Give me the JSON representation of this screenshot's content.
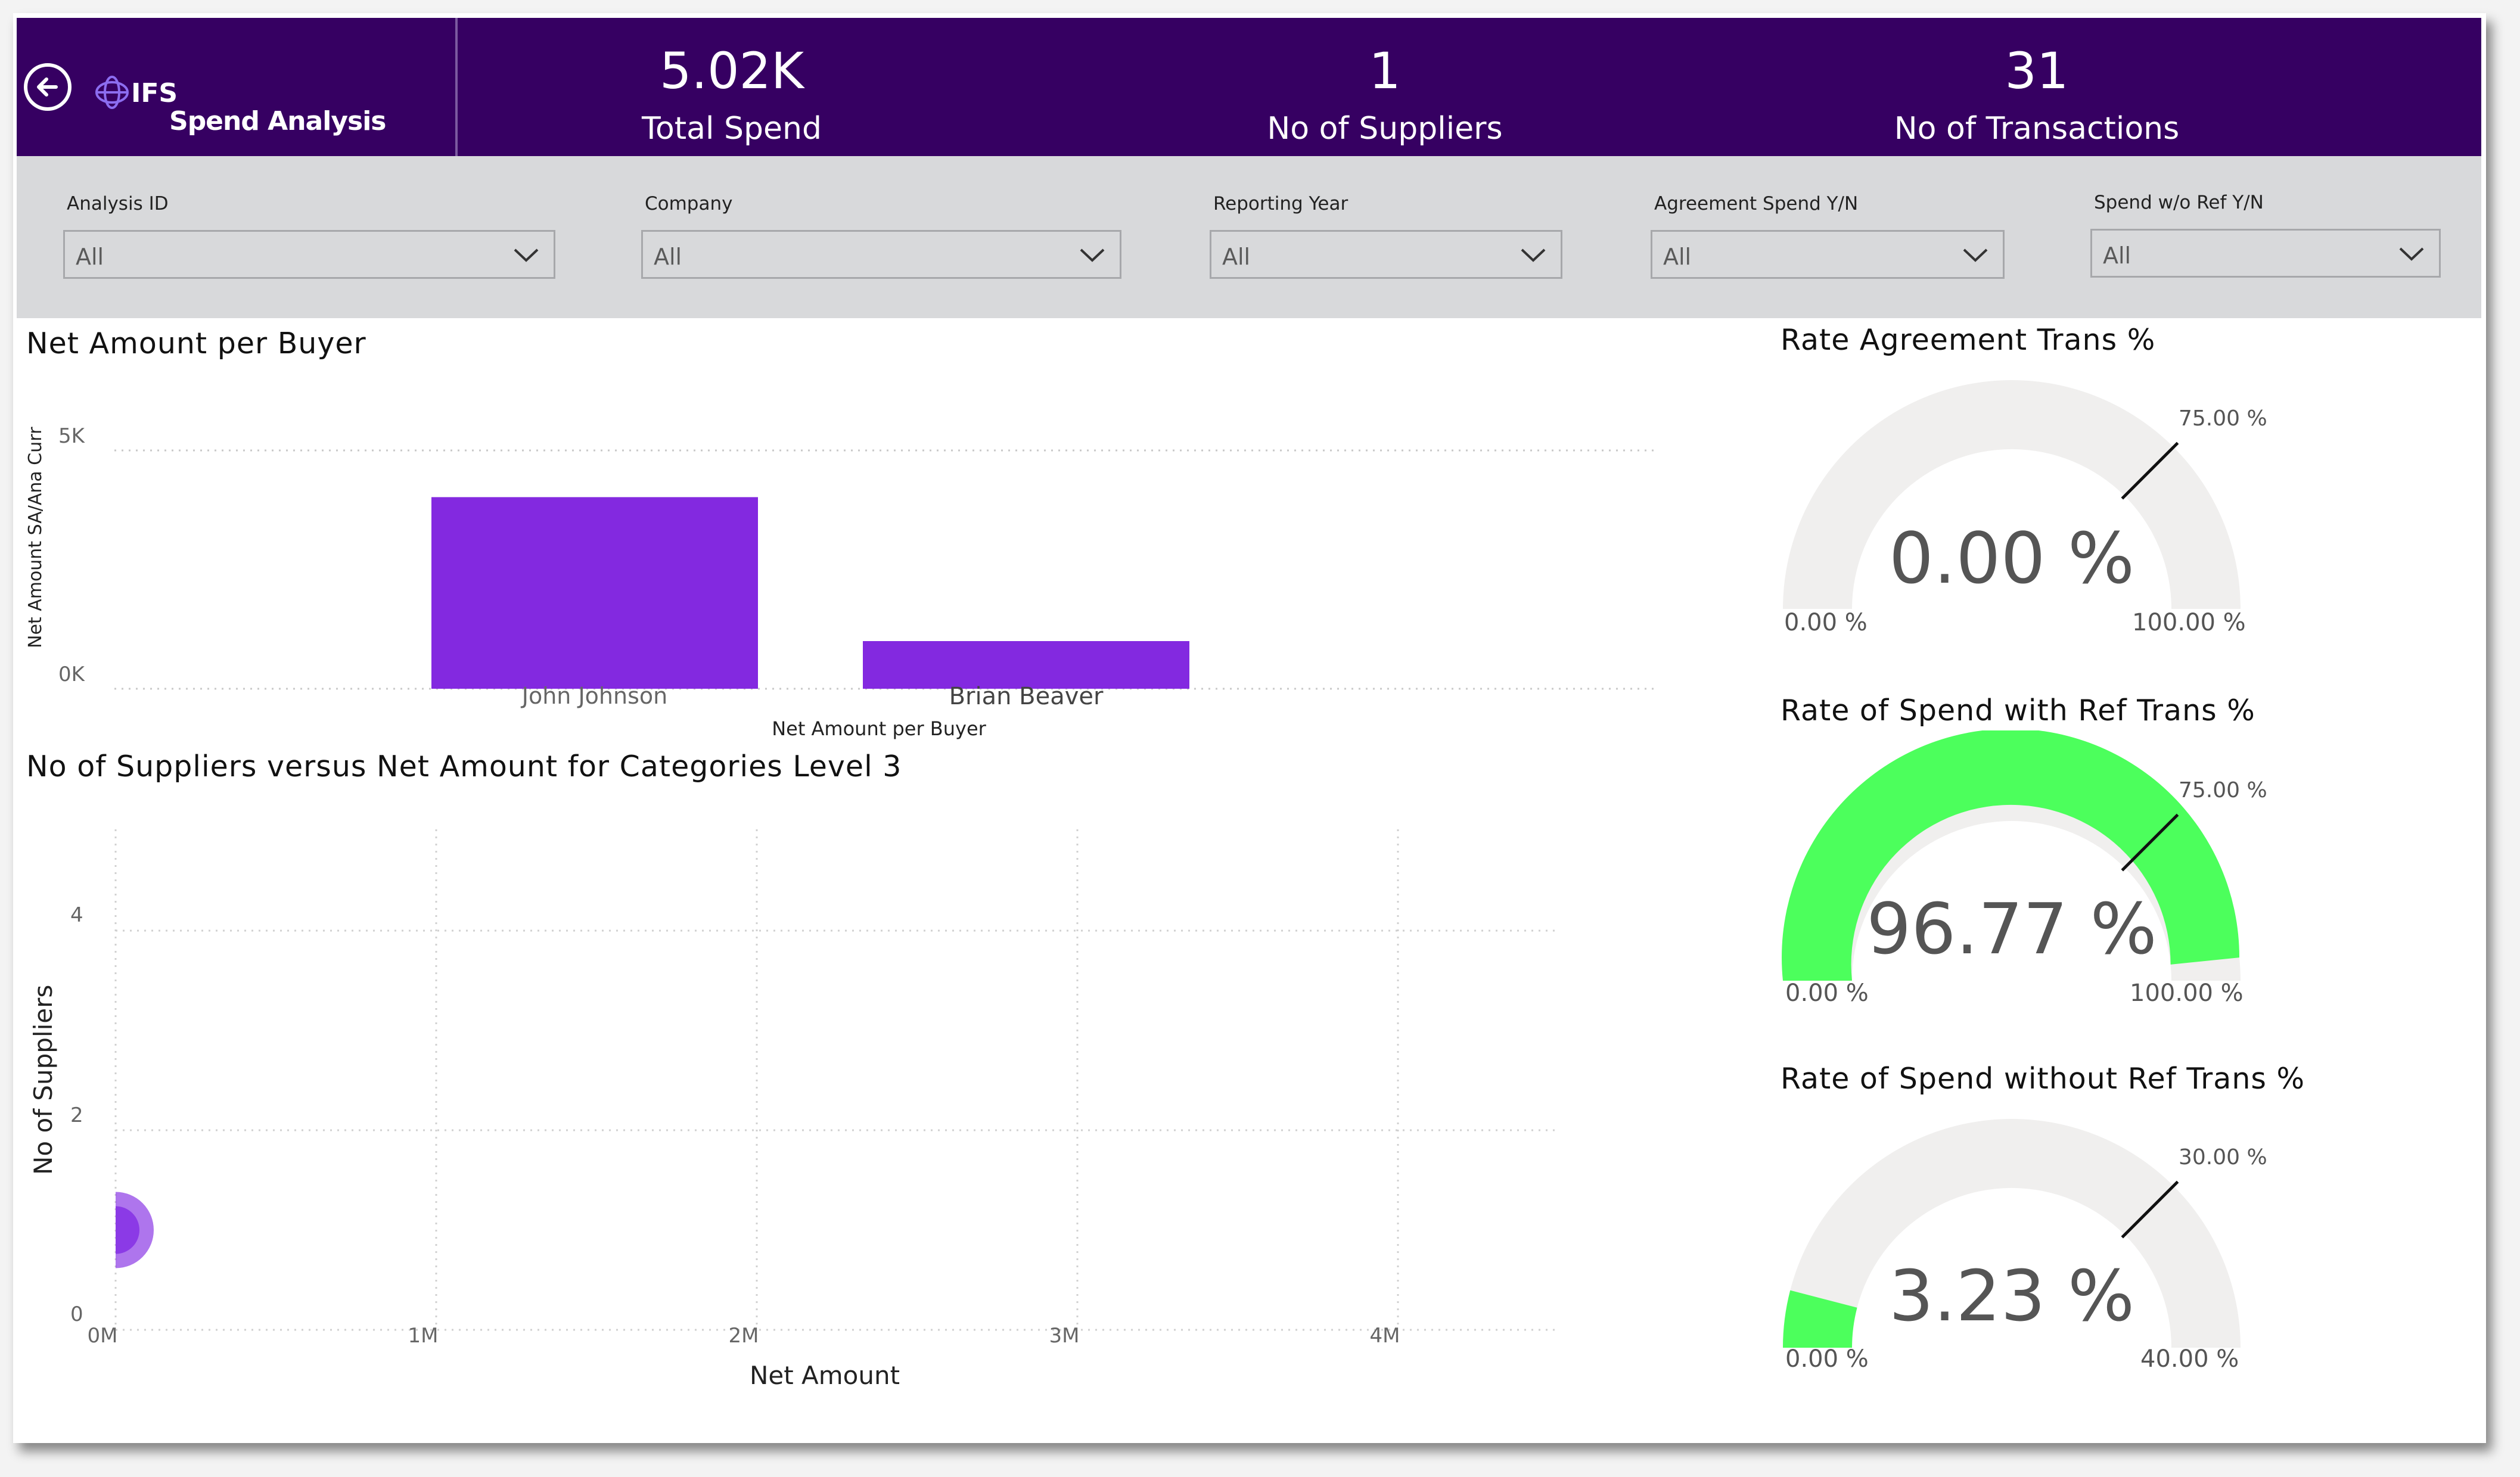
{
  "header": {
    "logo_text": "IFS",
    "app_title": "Spend Analysis",
    "kpis": [
      {
        "value": "5.02K",
        "label": "Total Spend"
      },
      {
        "value": "1",
        "label": "No of Suppliers"
      },
      {
        "value": "31",
        "label": "No of Transactions"
      }
    ]
  },
  "filters": [
    {
      "label": "Analysis ID",
      "value": "All"
    },
    {
      "label": "Company",
      "value": "All"
    },
    {
      "label": "Reporting Year",
      "value": "All"
    },
    {
      "label": "Agreement Spend Y/N",
      "value": "All"
    },
    {
      "label": "Spend w/o Ref Y/N",
      "value": "All"
    }
  ],
  "bar_visual": {
    "title": "Net Amount per Buyer",
    "ylabel": "Net Amount SA/Ana Curr",
    "xlabel": "Net Amount per Buyer",
    "yticks": [
      "5K",
      "0K"
    ]
  },
  "scatter_visual": {
    "title": "No of Suppliers versus Net Amount for Categories Level 3",
    "xlabel": "Net Amount",
    "ylabel": "No of Suppliers",
    "xticks": [
      "0M",
      "1M",
      "2M",
      "3M",
      "4M"
    ],
    "yticks": [
      "4",
      "2",
      "0"
    ]
  },
  "gauges": [
    {
      "title": "Rate Agreement Trans %",
      "value": 0.0,
      "value_label": "0.00 %",
      "min": 0,
      "max": 100,
      "target": 75,
      "min_label": "0.00 %",
      "max_label": "100.00 %",
      "target_label": "75.00 %"
    },
    {
      "title": "Rate of Spend with Ref Trans %",
      "value": 96.77,
      "value_label": "96.77 %",
      "min": 0,
      "max": 100,
      "target": 75,
      "min_label": "0.00 %",
      "max_label": "100.00 %",
      "target_label": "75.00 %"
    },
    {
      "title": "Rate of Spend without Ref Trans %",
      "value": 3.23,
      "value_label": "3.23 %",
      "min": 0,
      "max": 40,
      "target": 30,
      "min_label": "0.00 %",
      "max_label": "40.00 %",
      "target_label": "30.00 %"
    }
  ],
  "colors": {
    "header_bg": "#360062",
    "bar": "#8329e0",
    "gauge_fill": "#4cff5c",
    "gauge_track": "#f0efee",
    "bubble": "#8b3ae6"
  },
  "chart_data": [
    {
      "type": "bar",
      "title": "Net Amount per Buyer",
      "categories": [
        "John Johnson",
        "Brian Beaver"
      ],
      "values": [
        4020,
        1000
      ],
      "xlabel": "Net Amount per Buyer",
      "ylabel": "Net Amount SA/Ana Curr",
      "ylim": [
        0,
        5000
      ],
      "grid": true
    },
    {
      "type": "scatter",
      "title": "No of Suppliers versus Net Amount for Categories Level 3",
      "points": [
        {
          "x": 0.005,
          "y": 1
        }
      ],
      "xlabel": "Net Amount",
      "ylabel": "No of Suppliers",
      "xlim": [
        0,
        4500000
      ],
      "ylim": [
        0,
        5
      ],
      "grid": true
    }
  ]
}
